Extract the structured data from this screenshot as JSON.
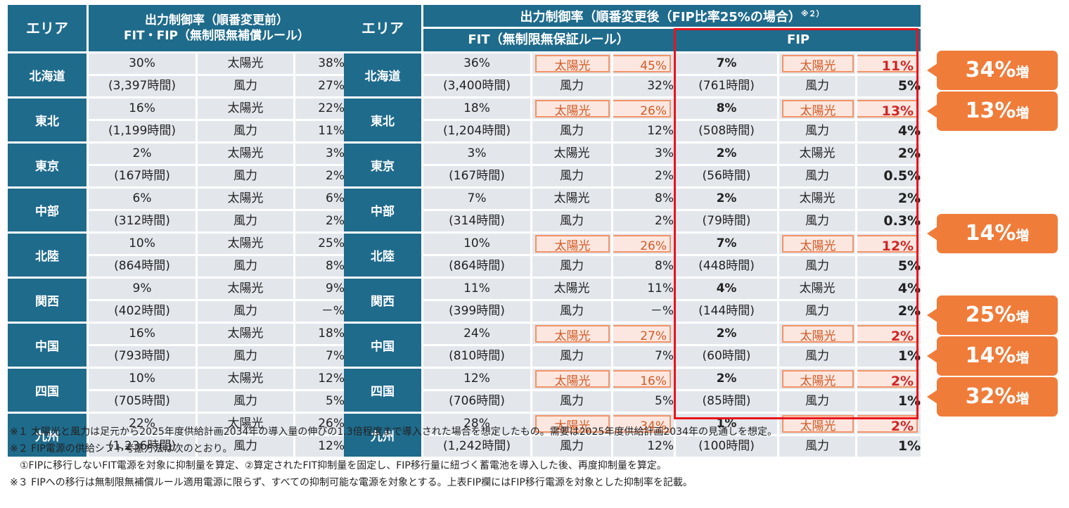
{
  "left_table": {
    "area_header": "エリア",
    "title_line1": "出力制御率（順番変更前）",
    "title_line2": "FIT・FIP（無制限無補償ルール）",
    "rows": [
      {
        "area": "北海道",
        "rate": "30%",
        "hours": "(3,397時間)",
        "solar_label": "太陽光",
        "solar": "38%",
        "wind_label": "風力",
        "wind": "27%"
      },
      {
        "area": "東北",
        "rate": "16%",
        "hours": "(1,199時間)",
        "solar_label": "太陽光",
        "solar": "22%",
        "wind_label": "風力",
        "wind": "11%"
      },
      {
        "area": "東京",
        "rate": "2%",
        "hours": "(167時間)",
        "solar_label": "太陽光",
        "solar": "3%",
        "wind_label": "風力",
        "wind": "2%"
      },
      {
        "area": "中部",
        "rate": "6%",
        "hours": "(312時間)",
        "solar_label": "太陽光",
        "solar": "6%",
        "wind_label": "風力",
        "wind": "2%"
      },
      {
        "area": "北陸",
        "rate": "10%",
        "hours": "(864時間)",
        "solar_label": "太陽光",
        "solar": "25%",
        "wind_label": "風力",
        "wind": "8%"
      },
      {
        "area": "関西",
        "rate": "9%",
        "hours": "(402時間)",
        "solar_label": "太陽光",
        "solar": "9%",
        "wind_label": "風力",
        "wind": "－%"
      },
      {
        "area": "中国",
        "rate": "16%",
        "hours": "(793時間)",
        "solar_label": "太陽光",
        "solar": "18%",
        "wind_label": "風力",
        "wind": "7%"
      },
      {
        "area": "四国",
        "rate": "10%",
        "hours": "(705時間)",
        "solar_label": "太陽光",
        "solar": "12%",
        "wind_label": "風力",
        "wind": "5%"
      },
      {
        "area": "九州",
        "rate": "22%",
        "hours": "(1,236時間)",
        "solar_label": "太陽光",
        "solar": "26%",
        "wind_label": "風力",
        "wind": "12%"
      }
    ]
  },
  "right_table": {
    "area_header": "エリア",
    "title": "出力制御率（順番変更後（FIP比率25%の場合）",
    "title_note": "※２）",
    "fit_header": "FIT（無制限無保証ルール）",
    "fip_header": "FIP",
    "rows": [
      {
        "area": "北海道",
        "fit_rate": "36%",
        "fit_hours": "(3,400時間)",
        "fit_solar_label": "太陽光",
        "fit_solar": "45%",
        "fit_wind_label": "風力",
        "fit_wind": "32%",
        "fip_rate": "7%",
        "fip_hours": "(761時間)",
        "fip_solar_label": "太陽光",
        "fip_solar": "11%",
        "fip_wind_label": "風力",
        "fip_wind": "5%",
        "highlight": true
      },
      {
        "area": "東北",
        "fit_rate": "18%",
        "fit_hours": "(1,204時間)",
        "fit_solar_label": "太陽光",
        "fit_solar": "26%",
        "fit_wind_label": "風力",
        "fit_wind": "12%",
        "fip_rate": "8%",
        "fip_hours": "(508時間)",
        "fip_solar_label": "太陽光",
        "fip_solar": "13%",
        "fip_wind_label": "風力",
        "fip_wind": "4%",
        "highlight": true
      },
      {
        "area": "東京",
        "fit_rate": "3%",
        "fit_hours": "(167時間)",
        "fit_solar_label": "太陽光",
        "fit_solar": "3%",
        "fit_wind_label": "風力",
        "fit_wind": "2%",
        "fip_rate": "2%",
        "fip_hours": "(56時間)",
        "fip_solar_label": "太陽光",
        "fip_solar": "2%",
        "fip_wind_label": "風力",
        "fip_wind": "0.5%",
        "highlight": false
      },
      {
        "area": "中部",
        "fit_rate": "7%",
        "fit_hours": "(314時間)",
        "fit_solar_label": "太陽光",
        "fit_solar": "8%",
        "fit_wind_label": "風力",
        "fit_wind": "2%",
        "fip_rate": "2%",
        "fip_hours": "(79時間)",
        "fip_solar_label": "太陽光",
        "fip_solar": "2%",
        "fip_wind_label": "風力",
        "fip_wind": "0.3%",
        "highlight": false
      },
      {
        "area": "北陸",
        "fit_rate": "10%",
        "fit_hours": "(864時間)",
        "fit_solar_label": "太陽光",
        "fit_solar": "26%",
        "fit_wind_label": "風力",
        "fit_wind": "8%",
        "fip_rate": "7%",
        "fip_hours": "(448時間)",
        "fip_solar_label": "太陽光",
        "fip_solar": "12%",
        "fip_wind_label": "風力",
        "fip_wind": "5%",
        "highlight": true
      },
      {
        "area": "関西",
        "fit_rate": "11%",
        "fit_hours": "(399時間)",
        "fit_solar_label": "太陽光",
        "fit_solar": "11%",
        "fit_wind_label": "風力",
        "fit_wind": "－%",
        "fip_rate": "4%",
        "fip_hours": "(144時間)",
        "fip_solar_label": "太陽光",
        "fip_solar": "4%",
        "fip_wind_label": "風力",
        "fip_wind": "2%",
        "highlight": false
      },
      {
        "area": "中国",
        "fit_rate": "24%",
        "fit_hours": "(810時間)",
        "fit_solar_label": "太陽光",
        "fit_solar": "27%",
        "fit_wind_label": "風力",
        "fit_wind": "7%",
        "fip_rate": "2%",
        "fip_hours": "(60時間)",
        "fip_solar_label": "太陽光",
        "fip_solar": "2%",
        "fip_wind_label": "風力",
        "fip_wind": "1%",
        "highlight": true
      },
      {
        "area": "四国",
        "fit_rate": "12%",
        "fit_hours": "(706時間)",
        "fit_solar_label": "太陽光",
        "fit_solar": "16%",
        "fit_wind_label": "風力",
        "fit_wind": "5%",
        "fip_rate": "2%",
        "fip_hours": "(85時間)",
        "fip_solar_label": "太陽光",
        "fip_solar": "2%",
        "fip_wind_label": "風力",
        "fip_wind": "1%",
        "highlight": true
      },
      {
        "area": "九州",
        "fit_rate": "28%",
        "fit_hours": "(1,242時間)",
        "fit_solar_label": "太陽光",
        "fit_solar": "34%",
        "fit_wind_label": "風力",
        "fit_wind": "12%",
        "fip_rate": "1%",
        "fip_hours": "(100時間)",
        "fip_solar_label": "太陽光",
        "fip_solar": "2%",
        "fip_wind_label": "風力",
        "fip_wind": "1%",
        "highlight": true
      }
    ]
  },
  "callouts": [
    {
      "value": "34%",
      "suffix": "増",
      "row": 0
    },
    {
      "value": "13%",
      "suffix": "増",
      "row": 1
    },
    {
      "value": "14%",
      "suffix": "増",
      "row": 4
    },
    {
      "value": "25%",
      "suffix": "増",
      "row": 6
    },
    {
      "value": "14%",
      "suffix": "増",
      "row": 7
    },
    {
      "value": "32%",
      "suffix": "増",
      "row": 8
    }
  ],
  "notes": [
    "※１ 太陽光と風力は足元から2025年度供給計画2034年の導入量の伸びの1.3倍程度まで導入された場合を想定したもの。需要は2025年度供給計画2034年の見通しを想定。",
    "※２ FIP電源の供給シフト考慮方法は次のとおり。",
    "　①FIPに移行しないFIT電源を対象に抑制量を算定、②算定されたFIT抑制量を固定し、FIP移行量に紐づく蓄電池を導入した後、再度抑制量を算定。",
    "※３ FIPへの移行は無制限無補償ルール適用電源に限らず、すべての抑制可能な電源を対象とする。上表FIP欄にはFIP移行電源を対象とした抑制率を記載。"
  ],
  "colors": {
    "header": "#1f6b8c",
    "cell": "#e3e7ec",
    "highlight_border": "#f29366",
    "fip_frame": "#e8141c",
    "callout": "#f07c3a"
  }
}
